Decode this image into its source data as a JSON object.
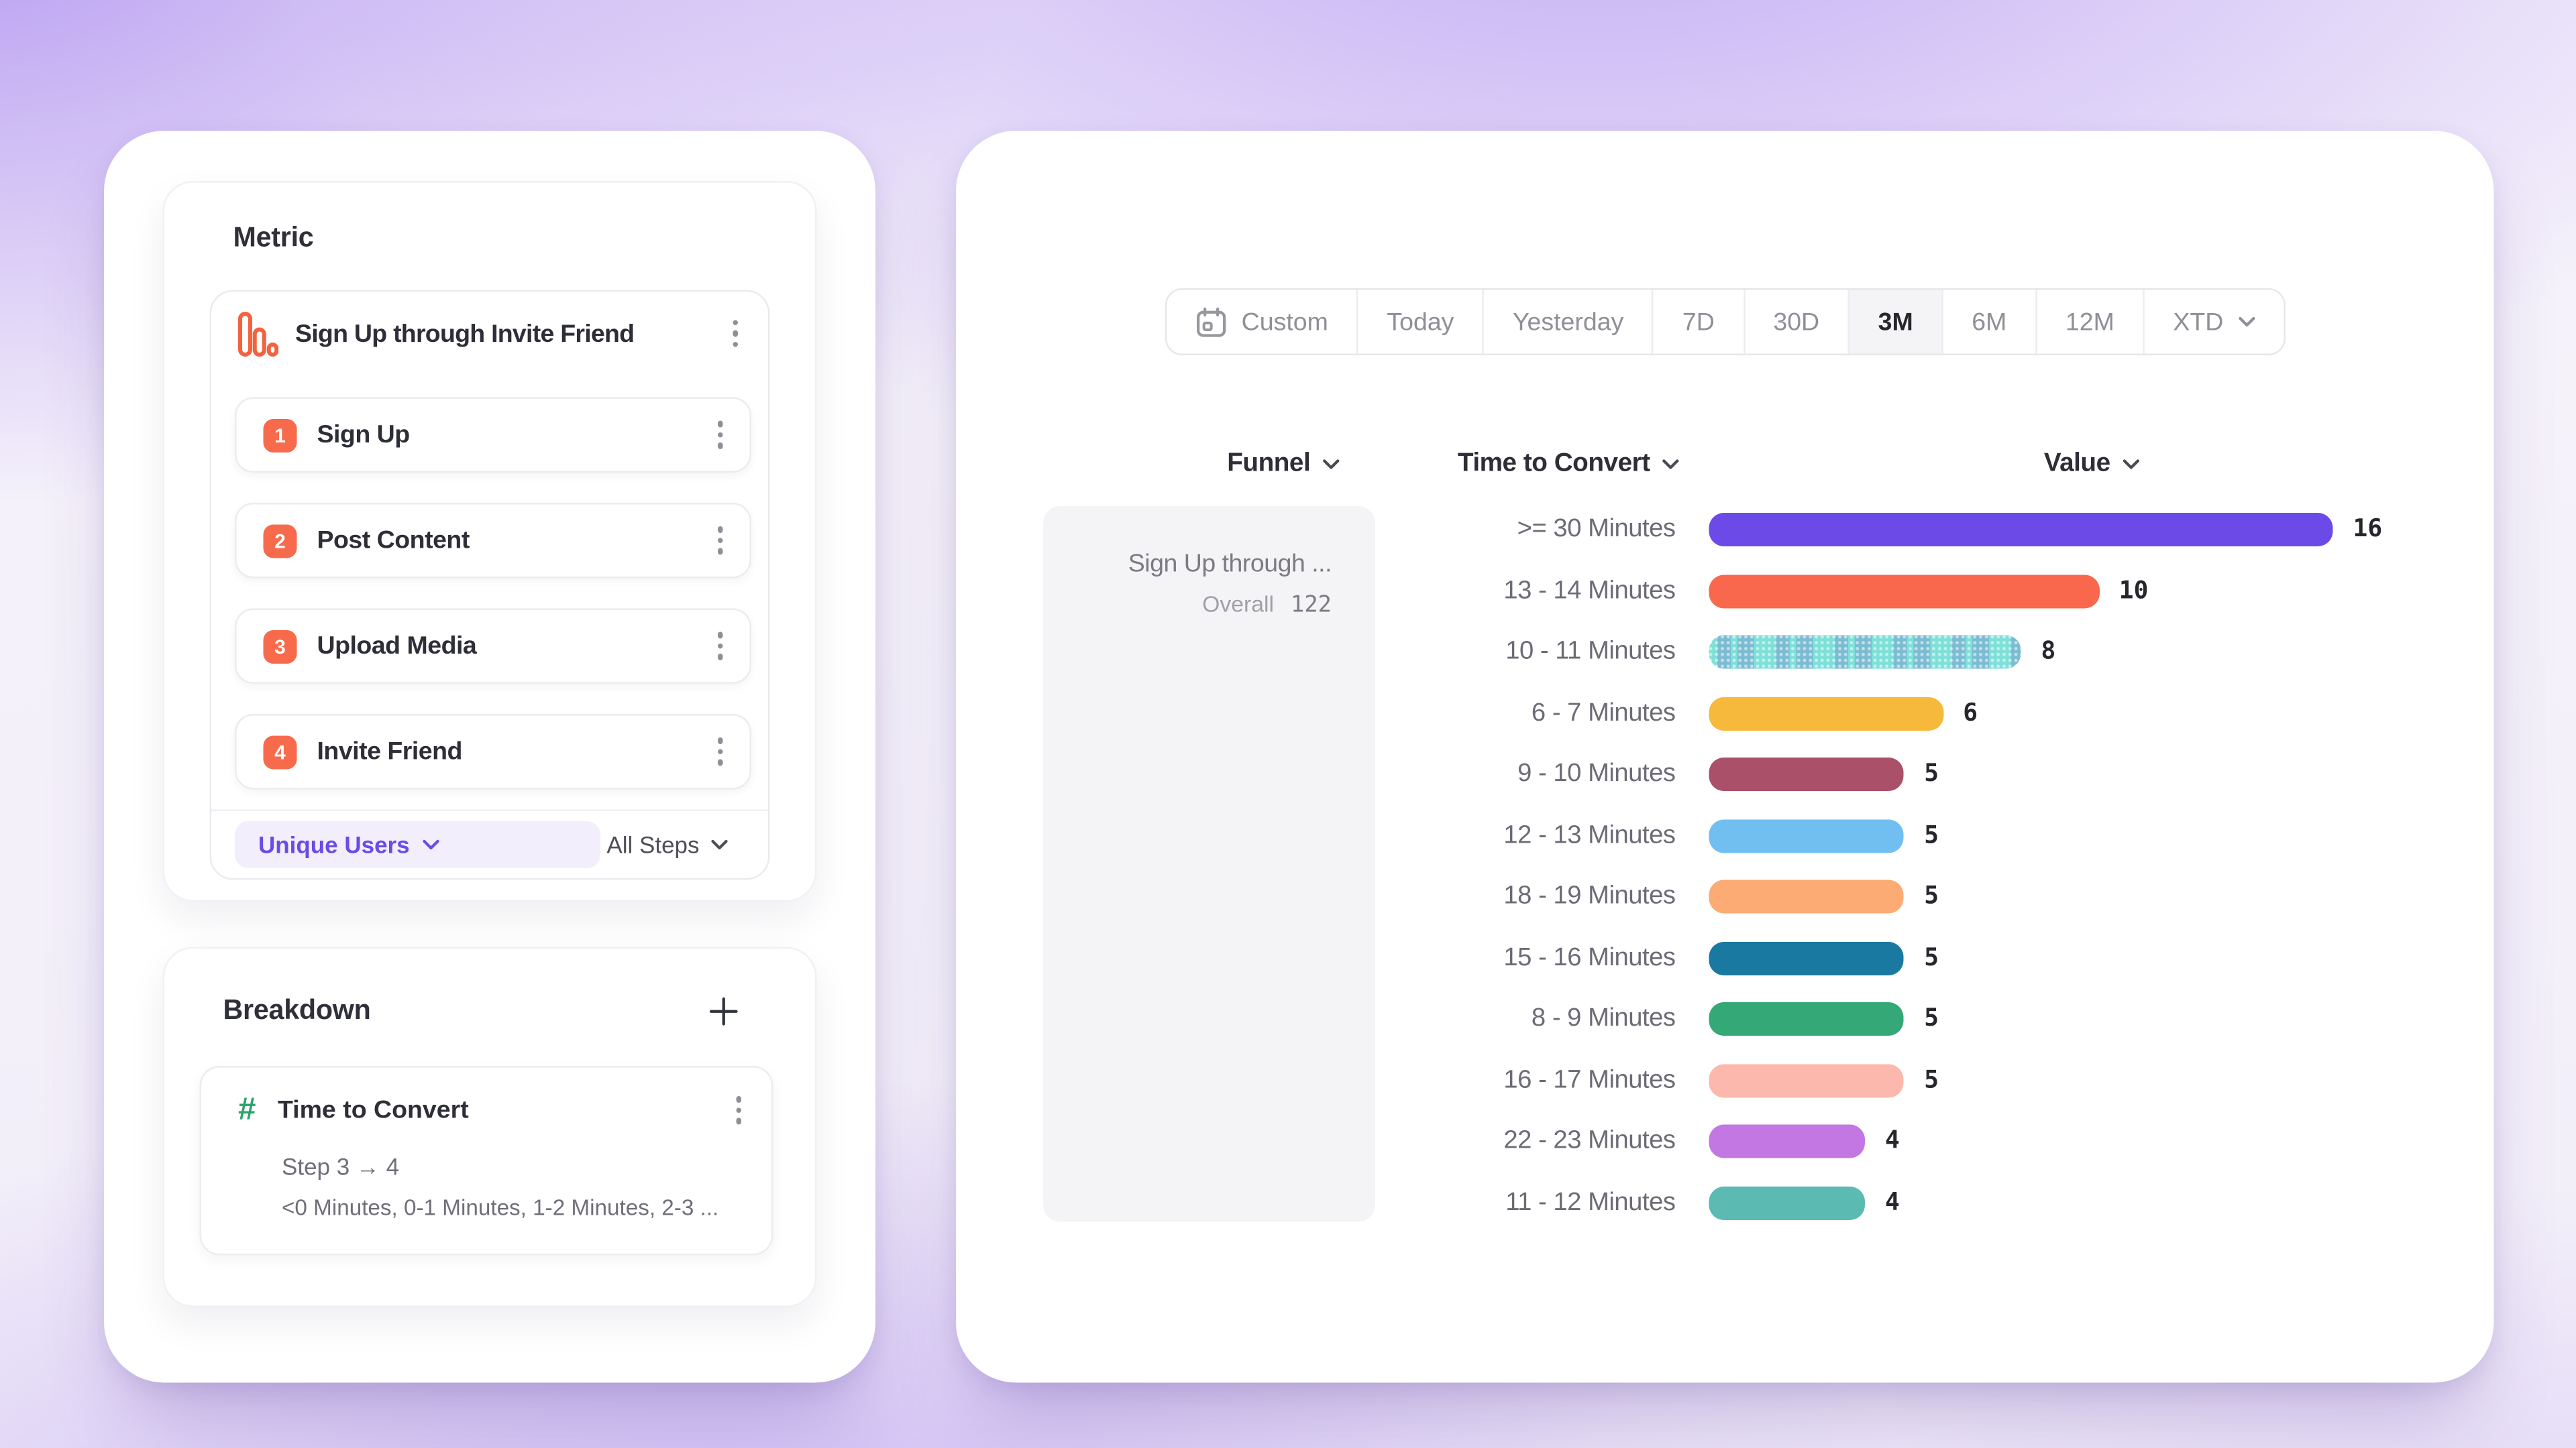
{
  "left_panel": {
    "metric": {
      "heading": "Metric",
      "funnel_title": "Sign Up through Invite Friend",
      "steps": [
        {
          "num": "1",
          "label": "Sign Up"
        },
        {
          "num": "2",
          "label": "Post Content"
        },
        {
          "num": "3",
          "label": "Upload Media"
        },
        {
          "num": "4",
          "label": "Invite Friend"
        }
      ],
      "counting_method": "Unique Users",
      "steps_filter": "All Steps"
    },
    "breakdown": {
      "heading": "Breakdown",
      "property": "Time to Convert",
      "step_range": "Step 3 → 4",
      "buckets_preview": "<0 Minutes, 0-1 Minutes, 1-2 Minutes, 2-3 ..."
    }
  },
  "right_panel": {
    "time_range": {
      "options": [
        "Custom",
        "Today",
        "Yesterday",
        "7D",
        "30D",
        "3M",
        "6M",
        "12M",
        "XTD"
      ],
      "selected": "3M",
      "calendar_icon_option": "Custom",
      "dropdown_option": "XTD"
    },
    "columns": {
      "funnel": "Funnel",
      "time_to_convert": "Time to Convert",
      "value": "Value"
    },
    "funnel_cell": {
      "name": "Sign Up through ...",
      "overall_label": "Overall",
      "overall_value": "122"
    }
  },
  "chart_data": {
    "type": "bar",
    "orientation": "horizontal",
    "x_max": 16,
    "categories": [
      ">= 30 Minutes",
      "13 - 14 Minutes",
      "10 - 11 Minutes",
      "6 - 7 Minutes",
      "9 - 10 Minutes",
      "12 - 13 Minutes",
      "18 - 19 Minutes",
      "15 - 16 Minutes",
      "8 - 9 Minutes",
      "16 - 17 Minutes",
      "22 - 23 Minutes",
      "11 - 12 Minutes"
    ],
    "values": [
      16,
      10,
      8,
      6,
      5,
      5,
      5,
      5,
      5,
      5,
      4,
      4
    ],
    "rows": [
      {
        "label": ">= 30 Minutes",
        "value": 16,
        "color": "#6B4AE8"
      },
      {
        "label": "13 - 14 Minutes",
        "value": 10,
        "color": "#F9684D"
      },
      {
        "label": "10 - 11 Minutes",
        "value": 8,
        "color": "#7EE0D8",
        "hatched": true
      },
      {
        "label": "6 - 7 Minutes",
        "value": 6,
        "color": "#F6B93C"
      },
      {
        "label": "9 - 10 Minutes",
        "value": 5,
        "color": "#AA5069"
      },
      {
        "label": "12 - 13 Minutes",
        "value": 5,
        "color": "#71BEF1"
      },
      {
        "label": "18 - 19 Minutes",
        "value": 5,
        "color": "#FBAB73"
      },
      {
        "label": "15 - 16 Minutes",
        "value": 5,
        "color": "#1979A0"
      },
      {
        "label": "8 - 9 Minutes",
        "value": 5,
        "color": "#35A877"
      },
      {
        "label": "16 - 17 Minutes",
        "value": 5,
        "color": "#FCB8AC"
      },
      {
        "label": "22 - 23 Minutes",
        "value": 4,
        "color": "#C277E2"
      },
      {
        "label": "11 - 12 Minutes",
        "value": 4,
        "color": "#5BBAB1"
      }
    ]
  }
}
